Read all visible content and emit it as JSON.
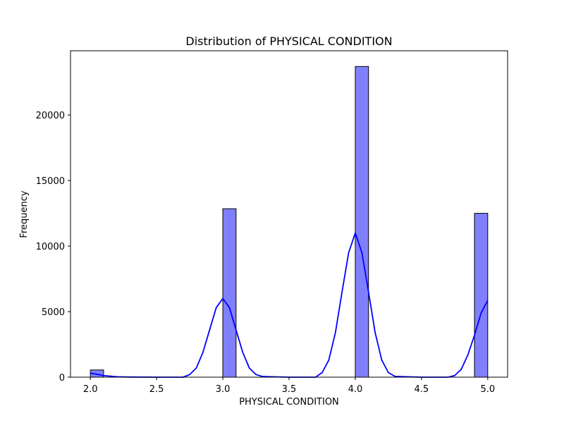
{
  "chart_data": {
    "type": "bar",
    "title": "Distribution of PHYSICAL CONDITION",
    "xlabel": "PHYSICAL CONDITION",
    "ylabel": "Frequency",
    "xlim": [
      1.85,
      5.15
    ],
    "ylim": [
      0,
      24900
    ],
    "x_ticks": [
      2.0,
      2.5,
      3.0,
      3.5,
      4.0,
      4.5,
      5.0
    ],
    "x_tick_labels": [
      "2.0",
      "2.5",
      "3.0",
      "3.5",
      "4.0",
      "4.5",
      "5.0"
    ],
    "y_ticks": [
      0,
      5000,
      10000,
      15000,
      20000
    ],
    "y_tick_labels": [
      "0",
      "5000",
      "10000",
      "15000",
      "20000"
    ],
    "bins": [
      {
        "x0": 2.0,
        "x1": 2.1,
        "value": 550
      },
      {
        "x0": 3.0,
        "x1": 3.1,
        "value": 12850
      },
      {
        "x0": 4.0,
        "x1": 4.1,
        "value": 23700
      },
      {
        "x0": 4.9,
        "x1": 5.0,
        "value": 12500
      }
    ],
    "kde": [
      [
        2.0,
        300
      ],
      [
        2.05,
        220
      ],
      [
        2.1,
        120
      ],
      [
        2.2,
        30
      ],
      [
        2.3,
        10
      ],
      [
        2.5,
        0
      ],
      [
        2.7,
        0
      ],
      [
        2.75,
        200
      ],
      [
        2.8,
        700
      ],
      [
        2.85,
        1900
      ],
      [
        2.9,
        3600
      ],
      [
        2.95,
        5300
      ],
      [
        3.0,
        6000
      ],
      [
        3.05,
        5300
      ],
      [
        3.1,
        3600
      ],
      [
        3.15,
        1900
      ],
      [
        3.2,
        700
      ],
      [
        3.25,
        200
      ],
      [
        3.3,
        50
      ],
      [
        3.5,
        0
      ],
      [
        3.7,
        0
      ],
      [
        3.75,
        350
      ],
      [
        3.8,
        1300
      ],
      [
        3.85,
        3400
      ],
      [
        3.9,
        6500
      ],
      [
        3.95,
        9500
      ],
      [
        4.0,
        11000
      ],
      [
        4.05,
        9500
      ],
      [
        4.1,
        6500
      ],
      [
        4.15,
        3400
      ],
      [
        4.2,
        1300
      ],
      [
        4.25,
        350
      ],
      [
        4.3,
        60
      ],
      [
        4.5,
        0
      ],
      [
        4.7,
        0
      ],
      [
        4.75,
        120
      ],
      [
        4.8,
        600
      ],
      [
        4.85,
        1700
      ],
      [
        4.9,
        3200
      ],
      [
        4.95,
        4900
      ],
      [
        5.0,
        5850
      ]
    ],
    "colors": {
      "bar_fill": "#8080ff",
      "bar_edge": "#000000",
      "kde_line": "#0000ff"
    }
  }
}
